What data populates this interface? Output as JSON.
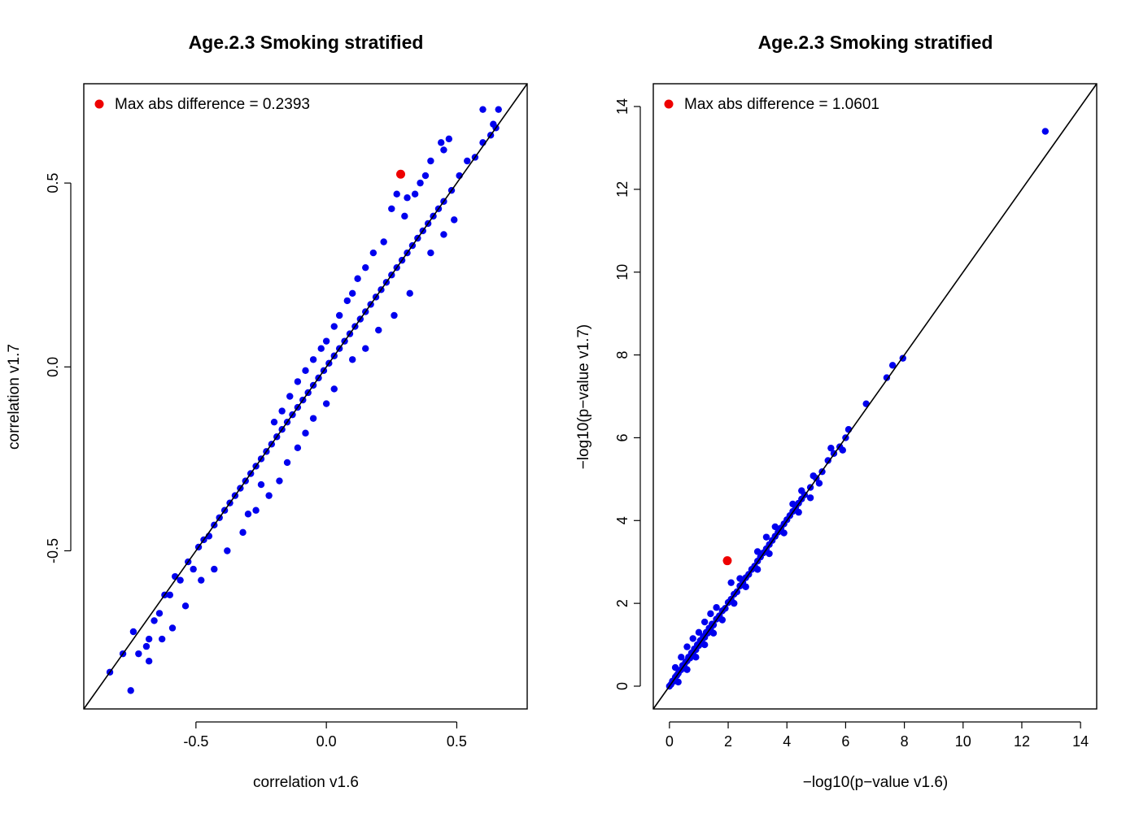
{
  "chart_data": [
    {
      "type": "scatter",
      "title": "Age.2.3 Smoking stratified",
      "xlabel": "correlation v1.6",
      "ylabel": "correlation v1.7",
      "xlim": [
        -0.93,
        0.77
      ],
      "ylim": [
        -0.93,
        0.77
      ],
      "xticks": [
        "-0.5",
        "0.0",
        "0.5"
      ],
      "xtick_values": [
        -0.5,
        0.0,
        0.5
      ],
      "yticks": [
        "-0.5",
        "0.0",
        "0.5"
      ],
      "ytick_values": [
        -0.5,
        0.0,
        0.5
      ],
      "reference_line": "y = x",
      "grid": false,
      "legend_position": "top-left",
      "legend": "Max abs difference = 0.2393",
      "point_color": "#0000ee",
      "highlight_color": "#ee0000",
      "highlight_point": {
        "x": 0.285,
        "y": 0.524
      },
      "points": [
        [
          -0.83,
          -0.83
        ],
        [
          -0.78,
          -0.78
        ],
        [
          -0.75,
          -0.88
        ],
        [
          -0.74,
          -0.72
        ],
        [
          -0.72,
          -0.78
        ],
        [
          -0.69,
          -0.76
        ],
        [
          -0.68,
          -0.74
        ],
        [
          -0.66,
          -0.69
        ],
        [
          -0.64,
          -0.67
        ],
        [
          -0.62,
          -0.62
        ],
        [
          -0.6,
          -0.62
        ],
        [
          -0.58,
          -0.57
        ],
        [
          -0.56,
          -0.58
        ],
        [
          -0.53,
          -0.53
        ],
        [
          -0.51,
          -0.55
        ],
        [
          -0.49,
          -0.49
        ],
        [
          -0.47,
          -0.47
        ],
        [
          -0.45,
          -0.46
        ],
        [
          -0.43,
          -0.43
        ],
        [
          -0.41,
          -0.41
        ],
        [
          -0.39,
          -0.39
        ],
        [
          -0.37,
          -0.37
        ],
        [
          -0.35,
          -0.35
        ],
        [
          -0.33,
          -0.33
        ],
        [
          -0.31,
          -0.31
        ],
        [
          -0.29,
          -0.29
        ],
        [
          -0.27,
          -0.27
        ],
        [
          -0.25,
          -0.25
        ],
        [
          -0.23,
          -0.23
        ],
        [
          -0.21,
          -0.21
        ],
        [
          -0.19,
          -0.19
        ],
        [
          -0.17,
          -0.17
        ],
        [
          -0.15,
          -0.15
        ],
        [
          -0.13,
          -0.13
        ],
        [
          -0.11,
          -0.11
        ],
        [
          -0.09,
          -0.09
        ],
        [
          -0.07,
          -0.07
        ],
        [
          -0.05,
          -0.05
        ],
        [
          -0.03,
          -0.03
        ],
        [
          -0.01,
          -0.01
        ],
        [
          0.01,
          0.01
        ],
        [
          0.03,
          0.03
        ],
        [
          0.05,
          0.05
        ],
        [
          0.07,
          0.07
        ],
        [
          0.09,
          0.09
        ],
        [
          0.11,
          0.11
        ],
        [
          0.13,
          0.13
        ],
        [
          0.15,
          0.15
        ],
        [
          0.17,
          0.17
        ],
        [
          0.19,
          0.19
        ],
        [
          0.21,
          0.21
        ],
        [
          0.23,
          0.23
        ],
        [
          0.25,
          0.25
        ],
        [
          0.27,
          0.27
        ],
        [
          0.29,
          0.29
        ],
        [
          0.31,
          0.31
        ],
        [
          0.33,
          0.33
        ],
        [
          0.35,
          0.35
        ],
        [
          0.37,
          0.37
        ],
        [
          0.39,
          0.39
        ],
        [
          0.41,
          0.41
        ],
        [
          0.43,
          0.43
        ],
        [
          0.45,
          0.45
        ],
        [
          0.48,
          0.48
        ],
        [
          0.51,
          0.52
        ],
        [
          0.54,
          0.56
        ],
        [
          0.57,
          0.57
        ],
        [
          0.6,
          0.61
        ],
        [
          0.63,
          0.63
        ],
        [
          0.65,
          0.65
        ],
        [
          0.66,
          0.7
        ],
        [
          0.6,
          0.7
        ],
        [
          0.64,
          0.66
        ],
        [
          0.47,
          0.62
        ],
        [
          0.45,
          0.59
        ],
        [
          0.44,
          0.61
        ],
        [
          0.4,
          0.56
        ],
        [
          0.38,
          0.52
        ],
        [
          0.36,
          0.5
        ],
        [
          0.34,
          0.47
        ],
        [
          0.31,
          0.46
        ],
        [
          0.3,
          0.41
        ],
        [
          0.27,
          0.47
        ],
        [
          0.25,
          0.43
        ],
        [
          0.22,
          0.34
        ],
        [
          0.18,
          0.31
        ],
        [
          0.15,
          0.27
        ],
        [
          0.12,
          0.24
        ],
        [
          0.1,
          0.2
        ],
        [
          0.08,
          0.18
        ],
        [
          0.05,
          0.14
        ],
        [
          0.03,
          0.11
        ],
        [
          0.0,
          0.07
        ],
        [
          -0.02,
          0.05
        ],
        [
          -0.05,
          0.02
        ],
        [
          -0.08,
          -0.01
        ],
        [
          -0.11,
          -0.04
        ],
        [
          -0.14,
          -0.08
        ],
        [
          -0.17,
          -0.12
        ],
        [
          -0.2,
          -0.15
        ],
        [
          0.03,
          -0.06
        ],
        [
          0.0,
          -0.1
        ],
        [
          -0.05,
          -0.14
        ],
        [
          -0.08,
          -0.18
        ],
        [
          -0.11,
          -0.22
        ],
        [
          -0.15,
          -0.26
        ],
        [
          -0.18,
          -0.31
        ],
        [
          -0.22,
          -0.35
        ],
        [
          -0.27,
          -0.39
        ],
        [
          -0.32,
          -0.45
        ],
        [
          -0.38,
          -0.5
        ],
        [
          -0.43,
          -0.55
        ],
        [
          -0.48,
          -0.58
        ],
        [
          -0.54,
          -0.65
        ],
        [
          -0.59,
          -0.71
        ],
        [
          -0.63,
          -0.74
        ],
        [
          -0.68,
          -0.8
        ],
        [
          0.15,
          0.05
        ],
        [
          0.2,
          0.1
        ],
        [
          0.26,
          0.14
        ],
        [
          0.32,
          0.2
        ],
        [
          0.4,
          0.31
        ],
        [
          0.45,
          0.36
        ],
        [
          0.49,
          0.4
        ],
        [
          -0.3,
          -0.4
        ],
        [
          -0.25,
          -0.32
        ],
        [
          0.1,
          0.02
        ]
      ]
    },
    {
      "type": "scatter",
      "title": "Age.2.3 Smoking stratified",
      "xlabel": "−log10(p−value v1.6)",
      "ylabel": "−log10(p−value v1.7)",
      "xlim": [
        -0.55,
        14.55
      ],
      "ylim": [
        -0.55,
        14.55
      ],
      "xticks": [
        "0",
        "2",
        "4",
        "6",
        "8",
        "10",
        "12",
        "14"
      ],
      "xtick_values": [
        0,
        2,
        4,
        6,
        8,
        10,
        12,
        14
      ],
      "yticks": [
        "0",
        "2",
        "4",
        "6",
        "8",
        "10",
        "12",
        "14"
      ],
      "ytick_values": [
        0,
        2,
        4,
        6,
        8,
        10,
        12,
        14
      ],
      "reference_line": "y = x",
      "grid": false,
      "legend_position": "top-left",
      "legend": "Max abs difference = 1.0601",
      "point_color": "#0000ee",
      "highlight_color": "#ee0000",
      "highlight_point": {
        "x": 1.97,
        "y": 3.03
      },
      "points": [
        [
          0.0,
          0.0
        ],
        [
          0.05,
          0.04
        ],
        [
          0.1,
          0.12
        ],
        [
          0.15,
          0.12
        ],
        [
          0.2,
          0.22
        ],
        [
          0.25,
          0.26
        ],
        [
          0.3,
          0.31
        ],
        [
          0.35,
          0.38
        ],
        [
          0.4,
          0.4
        ],
        [
          0.45,
          0.5
        ],
        [
          0.5,
          0.48
        ],
        [
          0.55,
          0.58
        ],
        [
          0.6,
          0.61
        ],
        [
          0.65,
          0.7
        ],
        [
          0.7,
          0.68
        ],
        [
          0.75,
          0.8
        ],
        [
          0.8,
          0.78
        ],
        [
          0.85,
          0.9
        ],
        [
          0.9,
          0.88
        ],
        [
          0.95,
          1.0
        ],
        [
          1.0,
          0.98
        ],
        [
          1.05,
          1.1
        ],
        [
          1.1,
          1.08
        ],
        [
          1.15,
          1.2
        ],
        [
          1.2,
          1.18
        ],
        [
          1.25,
          1.3
        ],
        [
          1.3,
          1.28
        ],
        [
          1.35,
          1.4
        ],
        [
          1.4,
          1.38
        ],
        [
          1.45,
          1.5
        ],
        [
          1.5,
          1.48
        ],
        [
          1.6,
          1.62
        ],
        [
          1.7,
          1.7
        ],
        [
          1.8,
          1.82
        ],
        [
          1.9,
          1.88
        ],
        [
          2.0,
          2.02
        ],
        [
          2.1,
          2.1
        ],
        [
          2.2,
          2.22
        ],
        [
          2.3,
          2.28
        ],
        [
          2.4,
          2.42
        ],
        [
          2.5,
          2.5
        ],
        [
          2.6,
          2.62
        ],
        [
          2.7,
          2.7
        ],
        [
          2.8,
          2.82
        ],
        [
          2.9,
          2.9
        ],
        [
          3.0,
          3.02
        ],
        [
          3.1,
          3.12
        ],
        [
          3.2,
          3.22
        ],
        [
          3.3,
          3.32
        ],
        [
          3.4,
          3.42
        ],
        [
          3.5,
          3.52
        ],
        [
          3.6,
          3.62
        ],
        [
          3.7,
          3.72
        ],
        [
          3.8,
          3.82
        ],
        [
          3.9,
          3.92
        ],
        [
          4.0,
          4.02
        ],
        [
          4.1,
          4.12
        ],
        [
          4.2,
          4.22
        ],
        [
          4.3,
          4.32
        ],
        [
          4.4,
          4.42
        ],
        [
          4.5,
          4.52
        ],
        [
          4.6,
          4.62
        ],
        [
          4.8,
          4.8
        ],
        [
          5.0,
          5.02
        ],
        [
          5.2,
          5.18
        ],
        [
          5.4,
          5.45
        ],
        [
          5.6,
          5.62
        ],
        [
          5.8,
          5.78
        ],
        [
          6.0,
          6.0
        ],
        [
          6.1,
          6.2
        ],
        [
          6.7,
          6.82
        ],
        [
          7.4,
          7.45
        ],
        [
          7.6,
          7.75
        ],
        [
          7.95,
          7.92
        ],
        [
          12.8,
          13.4
        ],
        [
          0.2,
          0.45
        ],
        [
          0.4,
          0.7
        ],
        [
          0.6,
          0.95
        ],
        [
          0.8,
          1.15
        ],
        [
          1.0,
          1.3
        ],
        [
          1.2,
          1.55
        ],
        [
          1.4,
          1.75
        ],
        [
          1.6,
          1.9
        ],
        [
          2.1,
          2.5
        ],
        [
          2.4,
          2.6
        ],
        [
          3.0,
          3.25
        ],
        [
          3.3,
          3.6
        ],
        [
          3.6,
          3.85
        ],
        [
          4.2,
          4.4
        ],
        [
          4.5,
          4.72
        ],
        [
          4.9,
          5.08
        ],
        [
          5.5,
          5.75
        ],
        [
          0.3,
          0.1
        ],
        [
          0.6,
          0.4
        ],
        [
          0.9,
          0.7
        ],
        [
          1.2,
          1.0
        ],
        [
          1.5,
          1.28
        ],
        [
          1.8,
          1.6
        ],
        [
          2.2,
          2.0
        ],
        [
          2.6,
          2.4
        ],
        [
          3.0,
          2.82
        ],
        [
          3.4,
          3.2
        ],
        [
          3.9,
          3.7
        ],
        [
          4.4,
          4.2
        ],
        [
          4.8,
          4.55
        ],
        [
          5.1,
          4.9
        ],
        [
          5.9,
          5.7
        ]
      ]
    }
  ]
}
